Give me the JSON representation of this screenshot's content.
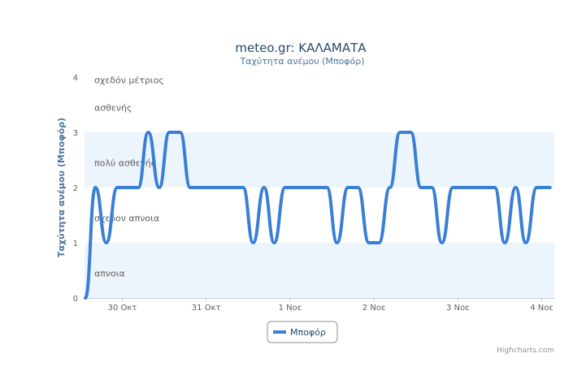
{
  "colors": {
    "series": "#3a7fd5",
    "band": "#ecf5fc",
    "title": "#274b6d",
    "subtitle": "#4d759e",
    "axis": "#c0d0e0"
  },
  "chart_data": {
    "type": "line",
    "title": "meteo.gr: ΚΑΛΑΜΑΤΑ",
    "subtitle": "Ταχύτητα ανέμου (Μποφόρ)",
    "ylabel": "Ταχύτητα ανέμου (Μποφόρ)",
    "xlabel": "",
    "ylim": [
      0,
      4
    ],
    "yticks": [
      0,
      1,
      2,
      3,
      4
    ],
    "xlim": [
      29.55,
      35.15
    ],
    "xticks": [
      {
        "x": 30,
        "label": "30 Οκτ"
      },
      {
        "x": 31,
        "label": "31 Οκτ"
      },
      {
        "x": 32,
        "label": "1 Νοε"
      },
      {
        "x": 33,
        "label": "2 Νοε"
      },
      {
        "x": 34,
        "label": "3 Νοε"
      },
      {
        "x": 35,
        "label": "4 Νοε"
      }
    ],
    "plot_bands": [
      {
        "from": 0,
        "to": 1,
        "shaded": true
      },
      {
        "from": 1,
        "to": 2,
        "shaded": false
      },
      {
        "from": 2,
        "to": 3,
        "shaded": true
      },
      {
        "from": 3,
        "to": 4,
        "shaded": false
      }
    ],
    "band_labels": [
      {
        "y": 0.45,
        "text": "απνοια"
      },
      {
        "y": 1.45,
        "text": "σχεδον απνοια"
      },
      {
        "y": 2.45,
        "text": "πολύ ασθενής"
      },
      {
        "y": 3.45,
        "text": "ασθενής"
      },
      {
        "y": 3.95,
        "text": "σχεδόν μέτριος"
      }
    ],
    "legend_position": "bottom-center",
    "series": [
      {
        "name": "Μποφόρ",
        "points": [
          [
            29.56,
            0
          ],
          [
            29.68,
            2
          ],
          [
            29.81,
            1
          ],
          [
            29.94,
            2
          ],
          [
            30.0,
            2
          ],
          [
            30.06,
            2
          ],
          [
            30.19,
            2
          ],
          [
            30.31,
            3
          ],
          [
            30.44,
            2
          ],
          [
            30.56,
            3
          ],
          [
            30.69,
            3
          ],
          [
            30.81,
            2
          ],
          [
            30.94,
            2
          ],
          [
            31.06,
            2
          ],
          [
            31.19,
            2
          ],
          [
            31.31,
            2
          ],
          [
            31.44,
            2
          ],
          [
            31.56,
            1
          ],
          [
            31.69,
            2
          ],
          [
            31.81,
            1
          ],
          [
            31.94,
            2
          ],
          [
            32.06,
            2
          ],
          [
            32.19,
            2
          ],
          [
            32.31,
            2
          ],
          [
            32.44,
            2
          ],
          [
            32.56,
            1
          ],
          [
            32.69,
            2
          ],
          [
            32.81,
            2
          ],
          [
            32.94,
            1
          ],
          [
            33.06,
            1
          ],
          [
            33.19,
            2
          ],
          [
            33.31,
            3
          ],
          [
            33.44,
            3
          ],
          [
            33.56,
            2
          ],
          [
            33.69,
            2
          ],
          [
            33.81,
            1
          ],
          [
            33.94,
            2
          ],
          [
            34.06,
            2
          ],
          [
            34.19,
            2
          ],
          [
            34.31,
            2
          ],
          [
            34.44,
            2
          ],
          [
            34.56,
            1
          ],
          [
            34.69,
            2
          ],
          [
            34.81,
            1
          ],
          [
            34.94,
            2
          ],
          [
            35.06,
            2
          ],
          [
            35.1,
            2
          ]
        ]
      }
    ]
  },
  "legend": {
    "label": "Μποφόρ"
  },
  "credits": "Highcharts.com"
}
